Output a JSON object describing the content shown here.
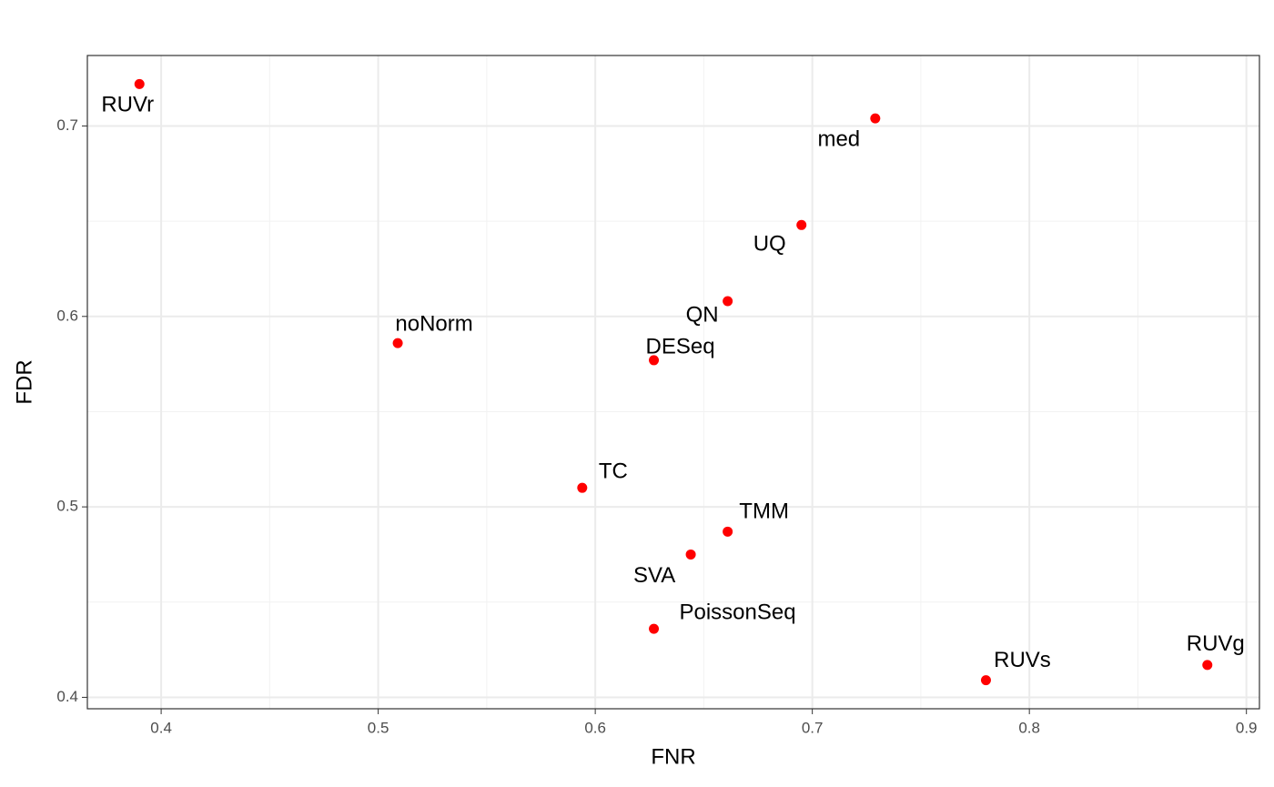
{
  "chart_data": {
    "type": "scatter",
    "x_label": "FNR",
    "y_label": "FDR",
    "labels": [
      "RUVr",
      "med",
      "UQ",
      "QN",
      "noNorm",
      "DESeq",
      "TC",
      "TMM",
      "SVA",
      "PoissonSeq",
      "RUVs",
      "RUVg"
    ],
    "x": [
      0.39,
      0.729,
      0.695,
      0.661,
      0.509,
      0.627,
      0.594,
      0.661,
      0.644,
      0.627,
      0.78,
      0.882
    ],
    "y": [
      0.722,
      0.704,
      0.648,
      0.608,
      0.586,
      0.577,
      0.51,
      0.487,
      0.475,
      0.436,
      0.409,
      0.417
    ],
    "color": "#ff0000",
    "xlim": [
      0.366,
      0.906
    ],
    "ylim": [
      0.394,
      0.737
    ],
    "xticks": [
      0.4,
      0.5,
      0.6,
      0.7,
      0.8,
      0.9
    ],
    "yticks": [
      0.4,
      0.5,
      0.6,
      0.7
    ],
    "grid": true
  }
}
